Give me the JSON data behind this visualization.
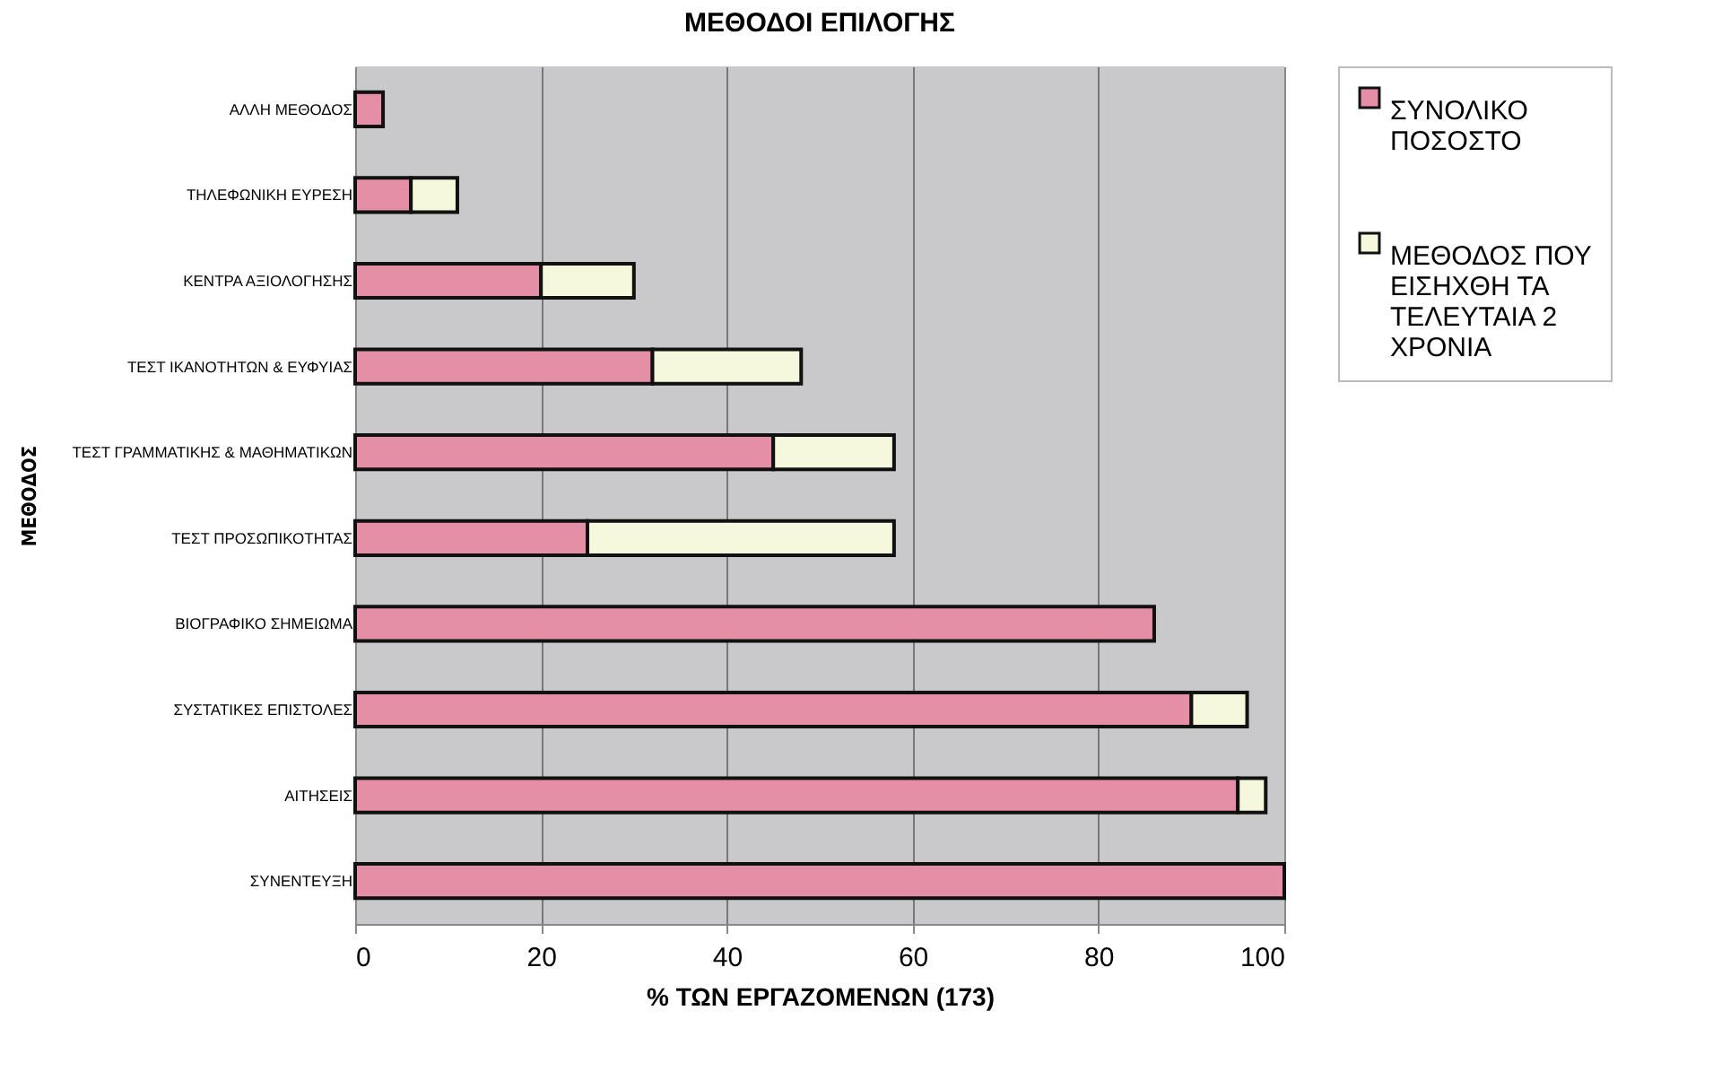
{
  "chart_data": {
    "type": "bar",
    "orientation": "horizontal",
    "stacked": true,
    "title": "ΜΕΘΟΔΟΙ ΕΠΙΛΟΓΗΣ",
    "xlabel": "% ΤΩΝ ΕΡΓΑΖΟΜΕΝΩΝ (173)",
    "ylabel": "ΜΕΘΟΔΟΣ",
    "categories": [
      "ΑΛΛΗ ΜΕΘΟΔΟΣ",
      "ΤΗΛΕΦΩΝΙΚΗ ΕΥΡΕΣΗ",
      "ΚΕΝΤΡΑ ΑΞΙΟΛΟΓΗΣΗΣ",
      "ΤΕΣΤ ΙΚΑΝΟΤΗΤΩΝ & ΕΥΦΥΙΑΣ",
      "ΤΕΣΤ ΓΡΑΜΜΑΤΙΚΗΣ & ΜΑΘΗΜΑΤΙΚΩΝ",
      "ΤΕΣΤ ΠΡΟΣΩΠΙΚΟΤΗΤΑΣ",
      "ΒΙΟΓΡΑΦΙΚΟ ΣΗΜΕΙΩΜΑ",
      "ΣΥΣΤΑΤΙΚΕΣ ΕΠΙΣΤΟΛΕΣ",
      "ΑΙΤΗΣΕΙΣ",
      "ΣΥΝΕΝΤΕΥΞΗ"
    ],
    "series": [
      {
        "name": "ΣΥΝΟΛΙΚΟ ΠΟΣΟΣΤΟ",
        "color": "#e58fa6",
        "values": [
          3,
          6,
          20,
          32,
          45,
          25,
          86,
          90,
          95,
          100
        ]
      },
      {
        "name": "ΜΕΘΟΔΟΣ ΠΟΥ ΕΙΣΗΧΘΗ ΤΑ ΤΕΛΕΥΤΑΙΑ 2 ΧΡΟΝΙΑ",
        "color": "#f6f8dc",
        "values": [
          null,
          5,
          10,
          16,
          13,
          33,
          null,
          6,
          3,
          null
        ]
      }
    ],
    "xlim": [
      0,
      100
    ],
    "xticks": [
      0,
      20,
      40,
      60,
      80,
      100
    ],
    "grid": "x",
    "legend": "right"
  }
}
